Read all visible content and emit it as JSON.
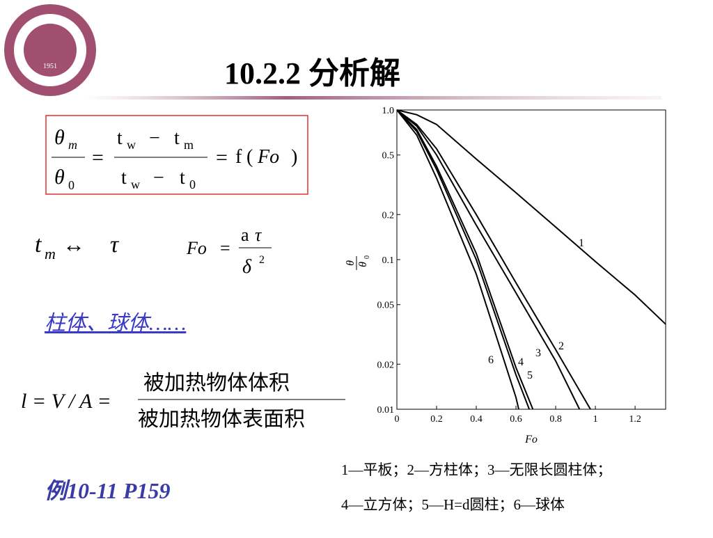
{
  "header": {
    "title": "10.2.2  分析解",
    "logo_year": "1951",
    "logo_ring": "CHONGQING UNIVERSITY OF SCIENCE & TECHNOLOGY"
  },
  "formulas": {
    "f1": {
      "lhs_num": "θ",
      "lhs_num_sub": "m",
      "lhs_den": "θ",
      "lhs_den_sub": "0",
      "eq1": "=",
      "mid_num": [
        "t",
        "w",
        "−",
        "t",
        "m"
      ],
      "mid_den": [
        "t",
        "w",
        "−",
        "t",
        "0"
      ],
      "eq2": "=",
      "func": "f",
      "open": "(",
      "arg": "Fo",
      "close": ")"
    },
    "f2": {
      "t": "t",
      "sub": "m",
      "arrow": "↔",
      "tau": "τ"
    },
    "f3": {
      "lhs": "Fo",
      "eq": "=",
      "num": [
        "a",
        "τ"
      ],
      "den": "δ",
      "sup": "2"
    },
    "f4": {
      "lhs": "l = V / A =",
      "num": "被加热物体体积",
      "den": "被加热物体表面积"
    }
  },
  "link": "柱体、球体……",
  "example": "例10-11 P159",
  "notes": [
    "1—平板；2—方柱体；3—无限长圆柱体；",
    "4—立方体；5—H=d圆柱；6—球体"
  ],
  "chart_data": {
    "type": "line",
    "x_label": "Fo",
    "y_label": "θ",
    "y_label_den": "θ",
    "y_label_sub": "0",
    "y_log": true,
    "xlim": [
      0,
      1.354
    ],
    "ylim": [
      0.01,
      1
    ],
    "xticks": [
      0,
      0.2,
      0.4,
      0.6,
      0.8,
      1.0,
      1.2
    ],
    "yticks": [
      {
        "value": 0.01,
        "label": "0.01"
      },
      {
        "value": 0.02,
        "label": "0.02"
      },
      {
        "value": 0.05,
        "label": "0.05"
      },
      {
        "value": 0.1,
        "label": "0.1"
      },
      {
        "value": 0.2,
        "label": "0.2"
      },
      {
        "value": 0.5,
        "label": "0.5"
      },
      {
        "value": 1,
        "label": "1.0"
      }
    ],
    "series": [
      {
        "name": "1",
        "color": "#000000",
        "x": [
          0,
          0.1,
          0.2,
          0.4,
          0.6,
          0.8,
          1.0,
          1.2,
          1.354
        ],
        "values": [
          1,
          0.93,
          0.8,
          0.47,
          0.28,
          0.165,
          0.097,
          0.058,
          0.037
        ]
      },
      {
        "name": "2",
        "color": "#000000",
        "x": [
          0,
          0.1,
          0.2,
          0.4,
          0.6,
          0.8,
          0.975
        ],
        "values": [
          1,
          0.8,
          0.55,
          0.2,
          0.07,
          0.025,
          0.01
        ]
      },
      {
        "name": "3",
        "color": "#000000",
        "x": [
          0,
          0.1,
          0.2,
          0.4,
          0.6,
          0.8,
          0.92
        ],
        "values": [
          1,
          0.78,
          0.5,
          0.17,
          0.06,
          0.021,
          0.01
        ]
      },
      {
        "name": "4",
        "color": "#000000",
        "x": [
          0,
          0.1,
          0.2,
          0.4,
          0.6,
          0.667
        ],
        "values": [
          1,
          0.72,
          0.4,
          0.1,
          0.017,
          0.01
        ]
      },
      {
        "name": "5",
        "color": "#000000",
        "x": [
          0,
          0.1,
          0.2,
          0.4,
          0.6,
          0.685
        ],
        "values": [
          1,
          0.74,
          0.42,
          0.11,
          0.019,
          0.01
        ]
      },
      {
        "name": "6",
        "color": "#000000",
        "x": [
          0,
          0.1,
          0.2,
          0.4,
          0.6,
          0.614
        ],
        "values": [
          1,
          0.68,
          0.35,
          0.08,
          0.012,
          0.01
        ]
      }
    ]
  }
}
